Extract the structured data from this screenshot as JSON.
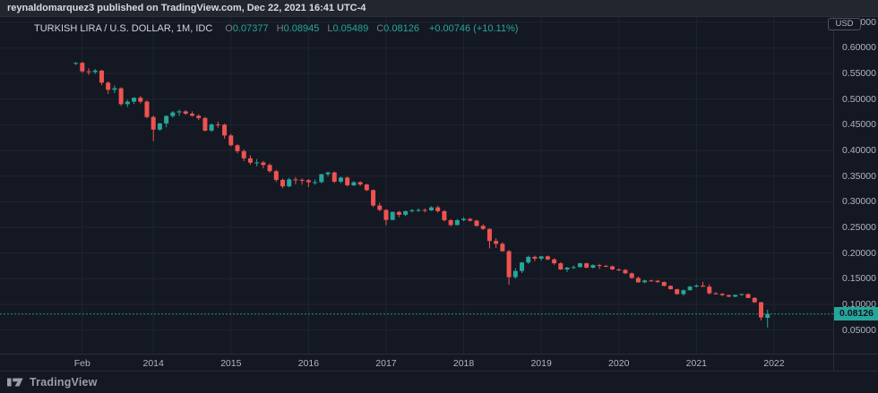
{
  "attribution": {
    "text": "reynaldomarquez3 published on TradingView.com, Dec 22, 2021 16:41 UTC-4"
  },
  "legend": {
    "symbol": "TURKISH LIRA / U.S. DOLLAR, 1M, IDC",
    "ohlc": [
      {
        "label": "O",
        "value": "0.07377"
      },
      {
        "label": "H",
        "value": "0.08945"
      },
      {
        "label": "L",
        "value": "0.05489"
      },
      {
        "label": "C",
        "value": "0.08126"
      }
    ],
    "change": "+0.00746 (+10.11%)"
  },
  "price_axis": {
    "unit": "USD",
    "last_price_label": "0.08126"
  },
  "footer": {
    "brand": "TradingView"
  },
  "colors": {
    "background": "#141823",
    "header_bar": "#22262f",
    "grid": "#1e2430",
    "border": "#2a2e39",
    "text_primary": "#d1d4dc",
    "text_secondary": "#b2b5be",
    "text_muted": "#787b86",
    "up": "#26a69a",
    "down": "#ef5350",
    "last_price_line": "#26a69a"
  },
  "chart_data": {
    "type": "candlestick",
    "title": "TURKISH LIRA / U.S. DOLLAR",
    "interval": "1M",
    "quote_unit": "USD",
    "price_range_visible": [
      0.05,
      0.65
    ],
    "grid": true,
    "last_price": 0.08126,
    "price_ticks": [
      {
        "label": "0.65000",
        "value": 0.65
      },
      {
        "label": "0.60000",
        "value": 0.6
      },
      {
        "label": "0.55000",
        "value": 0.55
      },
      {
        "label": "0.50000",
        "value": 0.5
      },
      {
        "label": "0.45000",
        "value": 0.45
      },
      {
        "label": "0.40000",
        "value": 0.4
      },
      {
        "label": "0.35000",
        "value": 0.35
      },
      {
        "label": "0.30000",
        "value": 0.3
      },
      {
        "label": "0.25000",
        "value": 0.25
      },
      {
        "label": "0.20000",
        "value": 0.2
      },
      {
        "label": "0.15000",
        "value": 0.15
      },
      {
        "label": "0.10000",
        "value": 0.1
      },
      {
        "label": "0.05000",
        "value": 0.05
      }
    ],
    "time_ticks": [
      {
        "label": "Feb",
        "month_index": 1
      },
      {
        "label": "2014",
        "month_index": 12
      },
      {
        "label": "2015",
        "month_index": 24
      },
      {
        "label": "2016",
        "month_index": 36
      },
      {
        "label": "2017",
        "month_index": 48
      },
      {
        "label": "2018",
        "month_index": 60
      },
      {
        "label": "2019",
        "month_index": 72
      },
      {
        "label": "2020",
        "month_index": 84
      },
      {
        "label": "2021",
        "month_index": 96
      },
      {
        "label": "2022",
        "month_index": 108
      }
    ],
    "columns": [
      "month",
      "open",
      "high",
      "low",
      "close"
    ],
    "candles": [
      [
        "2013-01",
        0.5695,
        0.572,
        0.566,
        0.5705
      ],
      [
        "2013-02",
        0.5705,
        0.573,
        0.551,
        0.554
      ],
      [
        "2013-03",
        0.554,
        0.56,
        0.547,
        0.5525
      ],
      [
        "2013-04",
        0.5525,
        0.5585,
        0.549,
        0.5555
      ],
      [
        "2013-05",
        0.5555,
        0.557,
        0.527,
        0.532
      ],
      [
        "2013-06",
        0.532,
        0.5345,
        0.51,
        0.518
      ],
      [
        "2013-07",
        0.518,
        0.5265,
        0.5115,
        0.521
      ],
      [
        "2013-08",
        0.521,
        0.523,
        0.4865,
        0.49
      ],
      [
        "2013-09",
        0.49,
        0.4985,
        0.4845,
        0.495
      ],
      [
        "2013-10",
        0.495,
        0.5035,
        0.4905,
        0.5025
      ],
      [
        "2013-11",
        0.5025,
        0.506,
        0.4915,
        0.495
      ],
      [
        "2013-12",
        0.495,
        0.4975,
        0.4625,
        0.465
      ],
      [
        "2014-01",
        0.465,
        0.468,
        0.418,
        0.4405
      ],
      [
        "2014-02",
        0.4405,
        0.4535,
        0.438,
        0.4525
      ],
      [
        "2014-03",
        0.4525,
        0.4685,
        0.445,
        0.467
      ],
      [
        "2014-04",
        0.467,
        0.4765,
        0.464,
        0.474
      ],
      [
        "2014-05",
        0.474,
        0.4795,
        0.4675,
        0.476
      ],
      [
        "2014-06",
        0.476,
        0.4785,
        0.469,
        0.4715
      ],
      [
        "2014-07",
        0.4715,
        0.476,
        0.4655,
        0.4675
      ],
      [
        "2014-08",
        0.4675,
        0.4705,
        0.459,
        0.463
      ],
      [
        "2014-09",
        0.463,
        0.4655,
        0.437,
        0.4385
      ],
      [
        "2014-10",
        0.4385,
        0.4525,
        0.436,
        0.4505
      ],
      [
        "2014-11",
        0.4505,
        0.456,
        0.444,
        0.45
      ],
      [
        "2014-12",
        0.45,
        0.452,
        0.423,
        0.429
      ],
      [
        "2015-01",
        0.429,
        0.432,
        0.4075,
        0.41
      ],
      [
        "2015-02",
        0.41,
        0.4125,
        0.3945,
        0.3985
      ],
      [
        "2015-03",
        0.3985,
        0.402,
        0.379,
        0.3845
      ],
      [
        "2015-04",
        0.3845,
        0.3905,
        0.372,
        0.376
      ],
      [
        "2015-05",
        0.376,
        0.383,
        0.369,
        0.3765
      ],
      [
        "2015-06",
        0.3765,
        0.3795,
        0.365,
        0.3715
      ],
      [
        "2015-07",
        0.3715,
        0.3745,
        0.3565,
        0.3595
      ],
      [
        "2015-08",
        0.3595,
        0.362,
        0.3385,
        0.3425
      ],
      [
        "2015-09",
        0.3425,
        0.345,
        0.3265,
        0.33
      ],
      [
        "2015-10",
        0.33,
        0.3465,
        0.328,
        0.3435
      ],
      [
        "2015-11",
        0.3435,
        0.348,
        0.334,
        0.3425
      ],
      [
        "2015-12",
        0.3425,
        0.3455,
        0.333,
        0.342
      ],
      [
        "2016-01",
        0.342,
        0.344,
        0.3285,
        0.338
      ],
      [
        "2016-02",
        0.338,
        0.3435,
        0.333,
        0.3382
      ],
      [
        "2016-03",
        0.3382,
        0.3545,
        0.336,
        0.3535
      ],
      [
        "2016-04",
        0.3535,
        0.3585,
        0.349,
        0.357
      ],
      [
        "2016-05",
        0.357,
        0.359,
        0.3365,
        0.339
      ],
      [
        "2016-06",
        0.339,
        0.349,
        0.336,
        0.347
      ],
      [
        "2016-07",
        0.347,
        0.349,
        0.3295,
        0.332
      ],
      [
        "2016-08",
        0.332,
        0.34,
        0.33,
        0.338
      ],
      [
        "2016-09",
        0.338,
        0.34,
        0.331,
        0.3335
      ],
      [
        "2016-10",
        0.3335,
        0.335,
        0.3205,
        0.3225
      ],
      [
        "2016-11",
        0.3225,
        0.324,
        0.2895,
        0.2925
      ],
      [
        "2016-12",
        0.2925,
        0.298,
        0.2815,
        0.284
      ],
      [
        "2017-01",
        0.284,
        0.2855,
        0.254,
        0.2645
      ],
      [
        "2017-02",
        0.2645,
        0.281,
        0.264,
        0.28
      ],
      [
        "2017-03",
        0.28,
        0.282,
        0.27,
        0.2745
      ],
      [
        "2017-04",
        0.2745,
        0.283,
        0.272,
        0.2815
      ],
      [
        "2017-05",
        0.2815,
        0.2855,
        0.279,
        0.2835
      ],
      [
        "2017-06",
        0.2835,
        0.287,
        0.28,
        0.284
      ],
      [
        "2017-07",
        0.284,
        0.287,
        0.279,
        0.283
      ],
      [
        "2017-08",
        0.283,
        0.291,
        0.282,
        0.289
      ],
      [
        "2017-09",
        0.289,
        0.292,
        0.279,
        0.2815
      ],
      [
        "2017-10",
        0.2815,
        0.284,
        0.2615,
        0.264
      ],
      [
        "2017-11",
        0.264,
        0.266,
        0.252,
        0.2545
      ],
      [
        "2017-12",
        0.2545,
        0.2665,
        0.254,
        0.264
      ],
      [
        "2018-01",
        0.264,
        0.27,
        0.262,
        0.2665
      ],
      [
        "2018-02",
        0.2665,
        0.2685,
        0.261,
        0.263
      ],
      [
        "2018-03",
        0.263,
        0.265,
        0.2515,
        0.253
      ],
      [
        "2018-04",
        0.253,
        0.256,
        0.245,
        0.247
      ],
      [
        "2018-05",
        0.247,
        0.248,
        0.209,
        0.2235
      ],
      [
        "2018-06",
        0.2235,
        0.229,
        0.21,
        0.218
      ],
      [
        "2018-07",
        0.218,
        0.221,
        0.2025,
        0.2035
      ],
      [
        "2018-08",
        0.2035,
        0.206,
        0.138,
        0.153
      ],
      [
        "2018-09",
        0.153,
        0.1705,
        0.15,
        0.165
      ],
      [
        "2018-10",
        0.165,
        0.183,
        0.161,
        0.1815
      ],
      [
        "2018-11",
        0.1815,
        0.195,
        0.179,
        0.1925
      ],
      [
        "2018-12",
        0.1925,
        0.195,
        0.184,
        0.189
      ],
      [
        "2019-01",
        0.189,
        0.1945,
        0.185,
        0.1935
      ],
      [
        "2019-02",
        0.1935,
        0.195,
        0.186,
        0.1875
      ],
      [
        "2019-03",
        0.1875,
        0.19,
        0.177,
        0.18
      ],
      [
        "2019-04",
        0.18,
        0.182,
        0.167,
        0.168
      ],
      [
        "2019-05",
        0.168,
        0.173,
        0.163,
        0.1715
      ],
      [
        "2019-06",
        0.1715,
        0.176,
        0.169,
        0.1725
      ],
      [
        "2019-07",
        0.1725,
        0.181,
        0.172,
        0.18
      ],
      [
        "2019-08",
        0.18,
        0.181,
        0.17,
        0.1715
      ],
      [
        "2019-09",
        0.1715,
        0.178,
        0.17,
        0.1765
      ],
      [
        "2019-10",
        0.1765,
        0.179,
        0.169,
        0.175
      ],
      [
        "2019-11",
        0.175,
        0.177,
        0.1725,
        0.174
      ],
      [
        "2019-12",
        0.174,
        0.1755,
        0.167,
        0.168
      ],
      [
        "2020-01",
        0.168,
        0.17,
        0.165,
        0.167
      ],
      [
        "2020-02",
        0.167,
        0.169,
        0.159,
        0.1605
      ],
      [
        "2020-03",
        0.1605,
        0.162,
        0.15,
        0.1515
      ],
      [
        "2020-04",
        0.1515,
        0.154,
        0.142,
        0.143
      ],
      [
        "2020-05",
        0.143,
        0.148,
        0.141,
        0.1465
      ],
      [
        "2020-06",
        0.1465,
        0.148,
        0.144,
        0.146
      ],
      [
        "2020-07",
        0.146,
        0.147,
        0.1415,
        0.1435
      ],
      [
        "2020-08",
        0.1435,
        0.1445,
        0.135,
        0.136
      ],
      [
        "2020-09",
        0.136,
        0.137,
        0.129,
        0.1295
      ],
      [
        "2020-10",
        0.1295,
        0.1305,
        0.119,
        0.12
      ],
      [
        "2020-11",
        0.12,
        0.129,
        0.117,
        0.1275
      ],
      [
        "2020-12",
        0.1275,
        0.136,
        0.127,
        0.1345
      ],
      [
        "2021-01",
        0.1345,
        0.139,
        0.133,
        0.1365
      ],
      [
        "2021-02",
        0.1365,
        0.144,
        0.134,
        0.1345
      ],
      [
        "2021-03",
        0.1345,
        0.139,
        0.119,
        0.1215
      ],
      [
        "2021-04",
        0.1215,
        0.124,
        0.119,
        0.1205
      ],
      [
        "2021-05",
        0.1205,
        0.122,
        0.116,
        0.118
      ],
      [
        "2021-06",
        0.118,
        0.119,
        0.114,
        0.115
      ],
      [
        "2021-07",
        0.115,
        0.119,
        0.114,
        0.1185
      ],
      [
        "2021-08",
        0.1185,
        0.121,
        0.117,
        0.12
      ],
      [
        "2021-09",
        0.12,
        0.121,
        0.112,
        0.1125
      ],
      [
        "2021-10",
        0.1125,
        0.114,
        0.103,
        0.104
      ],
      [
        "2021-11",
        0.104,
        0.105,
        0.069,
        0.0745
      ],
      [
        "2021-12",
        0.0738,
        0.0895,
        0.0549,
        0.0813
      ]
    ]
  }
}
